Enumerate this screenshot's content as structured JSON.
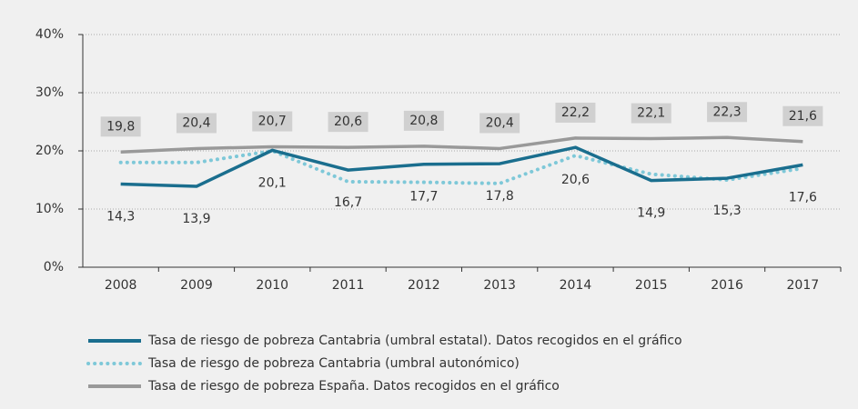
{
  "chart_data": {
    "type": "line",
    "categories": [
      "2008",
      "2009",
      "2010",
      "2011",
      "2012",
      "2013",
      "2014",
      "2015",
      "2016",
      "2017"
    ],
    "series": [
      {
        "name": "Tasa de riesgo de pobreza Cantabria (umbral estatal). Datos recogidos en el gráfico",
        "color": "#1a6e8e",
        "style": "solid",
        "values": [
          14.3,
          13.9,
          20.1,
          16.7,
          17.7,
          17.8,
          20.6,
          14.9,
          15.3,
          17.6
        ],
        "value_labels": [
          "14,3",
          "13,9",
          "20,1",
          "16,7",
          "17,7",
          "17,8",
          "20,6",
          "14,9",
          "15,3",
          "17,6"
        ]
      },
      {
        "name": "Tasa de riesgo de pobreza Cantabria (umbral autonómico)",
        "color": "#7ec8d8",
        "style": "dotted",
        "values": [
          18.0,
          18.0,
          20.0,
          14.7,
          14.6,
          14.4,
          19.2,
          16.0,
          15.0,
          17.0
        ]
      },
      {
        "name": "Tasa de riesgo de pobreza España. Datos recogidos en el gráfico",
        "color": "#999999",
        "style": "solid",
        "values": [
          19.8,
          20.4,
          20.7,
          20.6,
          20.8,
          20.4,
          22.2,
          22.1,
          22.3,
          21.6
        ],
        "value_labels": [
          "19,8",
          "20,4",
          "20,7",
          "20,6",
          "20,8",
          "20,4",
          "22,2",
          "22,1",
          "22,3",
          "21,6"
        ]
      }
    ],
    "ylim": [
      0,
      40
    ],
    "yticks": [
      {
        "value": 0,
        "label": "0%"
      },
      {
        "value": 10,
        "label": "10%"
      },
      {
        "value": 20,
        "label": "20%"
      },
      {
        "value": 30,
        "label": "30%"
      },
      {
        "value": 40,
        "label": "40%"
      }
    ],
    "grid": true
  }
}
